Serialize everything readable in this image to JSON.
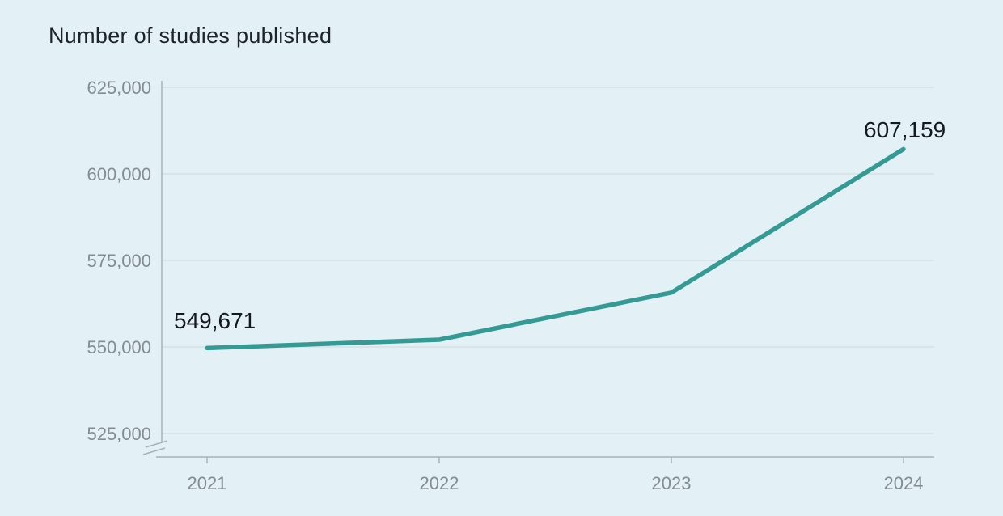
{
  "colors": {
    "background": "#e3f0f6",
    "line": "#359a94",
    "grid": "#d5dfe4",
    "axis": "#a8b2b8",
    "tick_text": "#838c93",
    "title_text": "#1d2329",
    "value_text": "#14191d"
  },
  "chart_data": {
    "type": "line",
    "title": "Number of studies published",
    "xlabel": "",
    "ylabel": "",
    "categories": [
      "2021",
      "2022",
      "2023",
      "2024"
    ],
    "series": [
      {
        "name": "Number of studies published",
        "values": [
          549671,
          552100,
          565700,
          607159
        ],
        "estimated": [
          false,
          true,
          true,
          false
        ]
      }
    ],
    "point_labels": [
      {
        "index": 0,
        "text": "549,671"
      },
      {
        "index": 3,
        "text": "607,159"
      }
    ],
    "ylim": [
      525000,
      625000
    ],
    "yticks": [
      625000,
      600000,
      575000,
      550000,
      525000
    ],
    "ytick_labels": [
      "625,000",
      "600,000",
      "575,000",
      "550,000",
      "525,000"
    ],
    "grid": "horizontal-only",
    "legend": "none",
    "y_axis_break_at_bottom": true,
    "markers": "none"
  }
}
